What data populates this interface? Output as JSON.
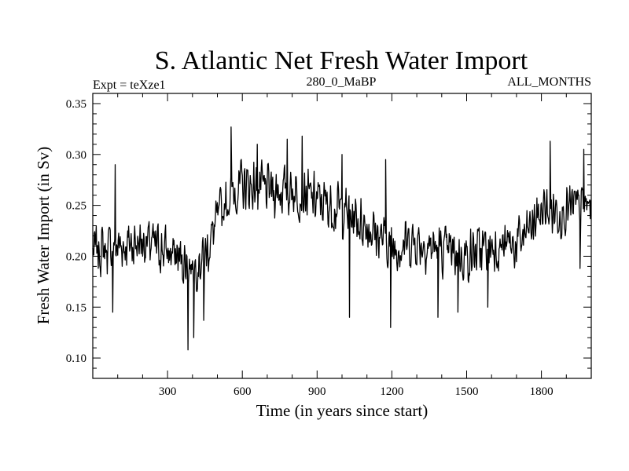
{
  "chart_data": {
    "type": "line",
    "title": "S. Atlantic Net Fresh Water Import",
    "subtitle_left": "Expt = teXze1",
    "subtitle_center": "280_0_MaBP",
    "subtitle_right": "ALL_MONTHS",
    "xlabel": "Time (in years since start)",
    "ylabel": "Fresh Water Import (in Sv)",
    "xlim": [
      0,
      2000
    ],
    "ylim": [
      0.08,
      0.36
    ],
    "x_ticks": [
      300,
      600,
      900,
      1200,
      1500,
      1800
    ],
    "x_tick_labels": [
      "300",
      "600",
      "900",
      "1200",
      "1500",
      "1800"
    ],
    "y_ticks": [
      0.1,
      0.15,
      0.2,
      0.25,
      0.3,
      0.35
    ],
    "y_tick_labels": [
      "0.10",
      "0.15",
      "0.20",
      "0.25",
      "0.30",
      "0.35"
    ],
    "series": [
      {
        "name": "Net fresh water import",
        "color": "#000000",
        "noise_amplitude": 0.03,
        "baseline": {
          "x": [
            0,
            100,
            200,
            300,
            400,
            450,
            500,
            550,
            600,
            700,
            800,
            900,
            1000,
            1100,
            1200,
            1300,
            1400,
            1500,
            1600,
            1700,
            1750,
            1800,
            1900,
            2000
          ],
          "y": [
            0.205,
            0.21,
            0.215,
            0.205,
            0.19,
            0.2,
            0.235,
            0.26,
            0.27,
            0.265,
            0.265,
            0.255,
            0.245,
            0.23,
            0.21,
            0.215,
            0.205,
            0.2,
            0.21,
            0.21,
            0.225,
            0.245,
            0.245,
            0.25
          ]
        },
        "peaks": [
          {
            "x": 90,
            "y": 0.29
          },
          {
            "x": 555,
            "y": 0.327
          },
          {
            "x": 660,
            "y": 0.31
          },
          {
            "x": 780,
            "y": 0.315
          },
          {
            "x": 840,
            "y": 0.318
          },
          {
            "x": 1000,
            "y": 0.3
          },
          {
            "x": 1175,
            "y": 0.295
          },
          {
            "x": 1835,
            "y": 0.313
          },
          {
            "x": 1970,
            "y": 0.305
          }
        ],
        "troughs": [
          {
            "x": 80,
            "y": 0.145
          },
          {
            "x": 382,
            "y": 0.108
          },
          {
            "x": 405,
            "y": 0.12
          },
          {
            "x": 445,
            "y": 0.137
          },
          {
            "x": 1030,
            "y": 0.14
          },
          {
            "x": 1195,
            "y": 0.13
          },
          {
            "x": 1385,
            "y": 0.14
          },
          {
            "x": 1465,
            "y": 0.145
          },
          {
            "x": 1585,
            "y": 0.15
          },
          {
            "x": 1955,
            "y": 0.188
          }
        ]
      }
    ]
  }
}
